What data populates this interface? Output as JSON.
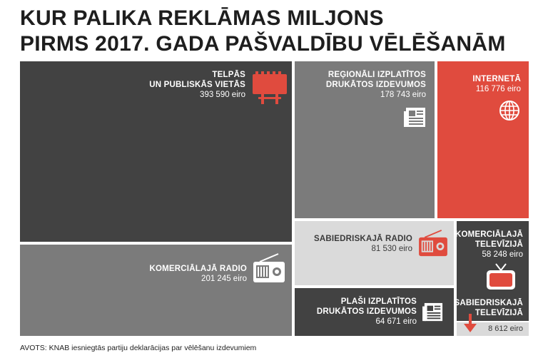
{
  "title": {
    "line1": "KUR PALIKA REKLĀMAS MILJONS",
    "line2": "PIRMS 2017. GADA PAŠVALDĪBU VĒLĒŠANĀM"
  },
  "source": "AVOTS: KNAB iesniegtās partiju deklarācijas par vēlēšanu izdevumiem",
  "colors": {
    "dark": "#424242",
    "mid": "#7b7b7b",
    "light": "#dadada",
    "red": "#e04b3e",
    "white": "#ffffff"
  },
  "chart_data": {
    "type": "treemap",
    "unit": "eiro",
    "items": [
      {
        "id": "telpas",
        "name_lines": [
          "TELPĀS",
          "UN PUBLISKĀS VIETĀS"
        ],
        "value": 393590,
        "value_label": "393 590 eiro",
        "icon": "billboard-icon"
      },
      {
        "id": "komerc-radio",
        "name_lines": [
          "KOMERCIĀLAJĀ RADIO"
        ],
        "value": 201245,
        "value_label": "201 245 eiro",
        "icon": "radio-icon"
      },
      {
        "id": "regionali",
        "name_lines": [
          "REĢIONĀLI IZPLATĪTOS",
          "DRUKĀTOS IZDEVUMOS"
        ],
        "value": 178743,
        "value_label": "178 743 eiro",
        "icon": "newspaper-icon"
      },
      {
        "id": "interneta",
        "name_lines": [
          "INTERNETĀ"
        ],
        "value": 116776,
        "value_label": "116 776 eiro",
        "icon": "globe-icon"
      },
      {
        "id": "sabiedr-radio",
        "name_lines": [
          "SABIEDRISKAJĀ RADIO"
        ],
        "value": 81530,
        "value_label": "81 530 eiro",
        "icon": "radio-icon"
      },
      {
        "id": "plasi",
        "name_lines": [
          "PLAŠI IZPLATĪTOS",
          "DRUKĀTOS IZDEVUMOS"
        ],
        "value": 64671,
        "value_label": "64 671 eiro",
        "icon": "newspaper-icon"
      },
      {
        "id": "komerc-tv",
        "name_lines": [
          "KOMERCIĀLAJĀ",
          "TELEVĪZIJĀ"
        ],
        "value": 58248,
        "value_label": "58 248 eiro",
        "icon": "tv-icon"
      },
      {
        "id": "sabiedr-tv",
        "name_lines": [
          "SABIEDRISKAJĀ",
          "TELEVĪZIJĀ"
        ],
        "value": 8612,
        "value_label": "8 612 eiro",
        "icon": "arrow-down-icon"
      }
    ]
  }
}
